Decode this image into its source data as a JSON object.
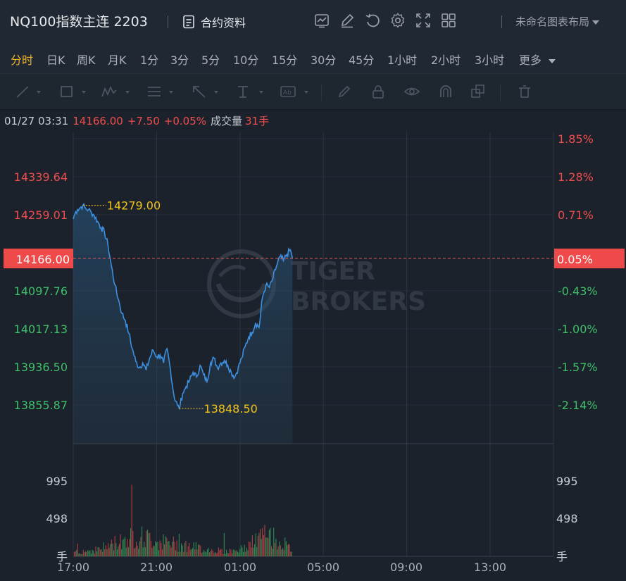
{
  "header": {
    "title": "NQ100指数主连 2203",
    "contract_info": "合约资料",
    "layout_label": "未命名图表布局"
  },
  "periods": [
    "分时",
    "日K",
    "周K",
    "月K",
    "1分",
    "3分",
    "5分",
    "10分",
    "15分",
    "30分",
    "45分",
    "1小时",
    "2小时",
    "3小时",
    "更多"
  ],
  "active_period": "分时",
  "info_bar": {
    "datetime": "01/27 03:31",
    "price": "14166.00",
    "change": "+7.50",
    "change_pct": "+0.05%",
    "volume_label": "成交量",
    "volume": "31手"
  },
  "watermark": {
    "line1": "TIGER",
    "line2": "BROKERS"
  },
  "colors": {
    "up": "#f04d4d",
    "down": "#3fbf6a",
    "line": "#3d8fe0",
    "highlight": "#f0c419",
    "bg": "#1b222c"
  },
  "chart_data": {
    "type": "line",
    "y_left_ticks": [
      "14339.64",
      "14259.01",
      "14097.76",
      "14017.13",
      "13936.50",
      "13855.87"
    ],
    "y_right_ticks": [
      "1.85%",
      "1.28%",
      "0.71%",
      "-0.43%",
      "-1.00%",
      "-1.57%",
      "-2.14%"
    ],
    "current_price": "14166.00",
    "current_pct": "0.05%",
    "high_label": "14279.00",
    "low_label": "13848.50",
    "x_ticks": [
      "17:00",
      "21:00",
      "01:00",
      "05:00",
      "09:00",
      "13:00"
    ],
    "volume_ticks": [
      "995",
      "498"
    ],
    "volume_unit": "手",
    "price_series": [
      [
        "17:00",
        14250
      ],
      [
        "17:05",
        14262
      ],
      [
        "17:12",
        14270
      ],
      [
        "17:20",
        14274
      ],
      [
        "17:28",
        14279
      ],
      [
        "17:36",
        14272
      ],
      [
        "17:44",
        14270
      ],
      [
        "17:52",
        14264
      ],
      [
        "18:00",
        14258
      ],
      [
        "18:10",
        14245
      ],
      [
        "18:20",
        14232
      ],
      [
        "18:30",
        14222
      ],
      [
        "18:40",
        14195
      ],
      [
        "18:50",
        14150
      ],
      [
        "19:00",
        14110
      ],
      [
        "19:10",
        14080
      ],
      [
        "19:20",
        14050
      ],
      [
        "19:30",
        14035
      ],
      [
        "19:40",
        14008
      ],
      [
        "19:50",
        13975
      ],
      [
        "20:00",
        13948
      ],
      [
        "20:10",
        13935
      ],
      [
        "20:20",
        13945
      ],
      [
        "20:30",
        13930
      ],
      [
        "20:40",
        13955
      ],
      [
        "20:50",
        13972
      ],
      [
        "21:00",
        13958
      ],
      [
        "21:10",
        13962
      ],
      [
        "21:20",
        13945
      ],
      [
        "21:30",
        13975
      ],
      [
        "21:40",
        13930
      ],
      [
        "21:50",
        13875
      ],
      [
        "22:00",
        13855
      ],
      [
        "22:05",
        13848.5
      ],
      [
        "22:15",
        13880
      ],
      [
        "22:25",
        13895
      ],
      [
        "22:35",
        13908
      ],
      [
        "22:45",
        13925
      ],
      [
        "22:55",
        13915
      ],
      [
        "23:05",
        13940
      ],
      [
        "23:15",
        13920
      ],
      [
        "23:25",
        13905
      ],
      [
        "23:35",
        13945
      ],
      [
        "23:45",
        13955
      ],
      [
        "23:55",
        13935
      ],
      [
        "00:05",
        13945
      ],
      [
        "00:15",
        13950
      ],
      [
        "00:25",
        13940
      ],
      [
        "00:35",
        13925
      ],
      [
        "00:45",
        13915
      ],
      [
        "00:55",
        13935
      ],
      [
        "01:05",
        13955
      ],
      [
        "01:15",
        13980
      ],
      [
        "01:25",
        14000
      ],
      [
        "01:35",
        14010
      ],
      [
        "01:45",
        14030
      ],
      [
        "01:55",
        14020
      ],
      [
        "02:05",
        14085
      ],
      [
        "02:15",
        14110
      ],
      [
        "02:25",
        14105
      ],
      [
        "02:35",
        14125
      ],
      [
        "02:45",
        14150
      ],
      [
        "02:55",
        14170
      ],
      [
        "03:05",
        14162
      ],
      [
        "03:15",
        14175
      ],
      [
        "03:25",
        14185
      ],
      [
        "03:31",
        14166
      ]
    ]
  }
}
